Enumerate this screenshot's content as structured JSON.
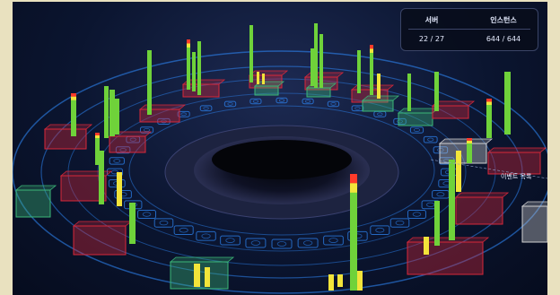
{
  "stats_panel": {
    "headers": [
      "서버",
      "인스턴스"
    ],
    "values": [
      "22 / 27",
      "644 / 644"
    ]
  },
  "event_list_label": "이벤트 목록",
  "colors": {
    "background": "#0b1530",
    "ring": "#2f8cff",
    "bar_normal": "#6fd23a",
    "bar_warning": "#f2e43a",
    "bar_critical": "#ff3b2a",
    "box_normal": "#3cb878",
    "box_critical": "#d8283a",
    "box_inactive": "#d0d0d0",
    "frame": "#e9e1bf"
  }
}
